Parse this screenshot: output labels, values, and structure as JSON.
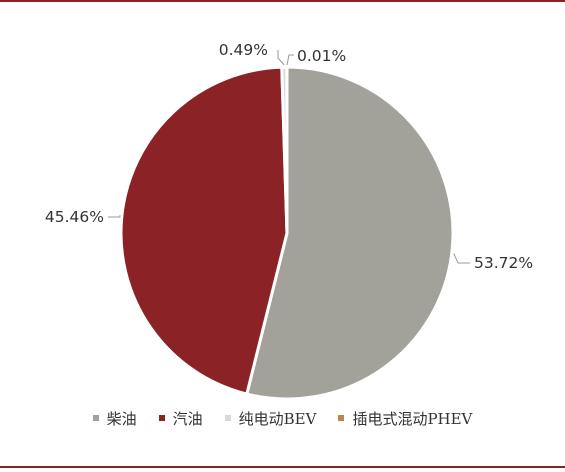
{
  "chart_data": {
    "type": "pie",
    "categories": [
      "柴油",
      "汽油",
      "纯电动BEV",
      "插电式混动PHEV"
    ],
    "values": [
      53.72,
      45.46,
      0.49,
      0.01
    ],
    "value_labels": [
      "53.72%",
      "45.46%",
      "0.49%",
      "0.01%"
    ],
    "colors": [
      "#a2a19a",
      "#8b2326",
      "#d9d9d9",
      "#c0844a"
    ],
    "legend_position": "bottom"
  }
}
